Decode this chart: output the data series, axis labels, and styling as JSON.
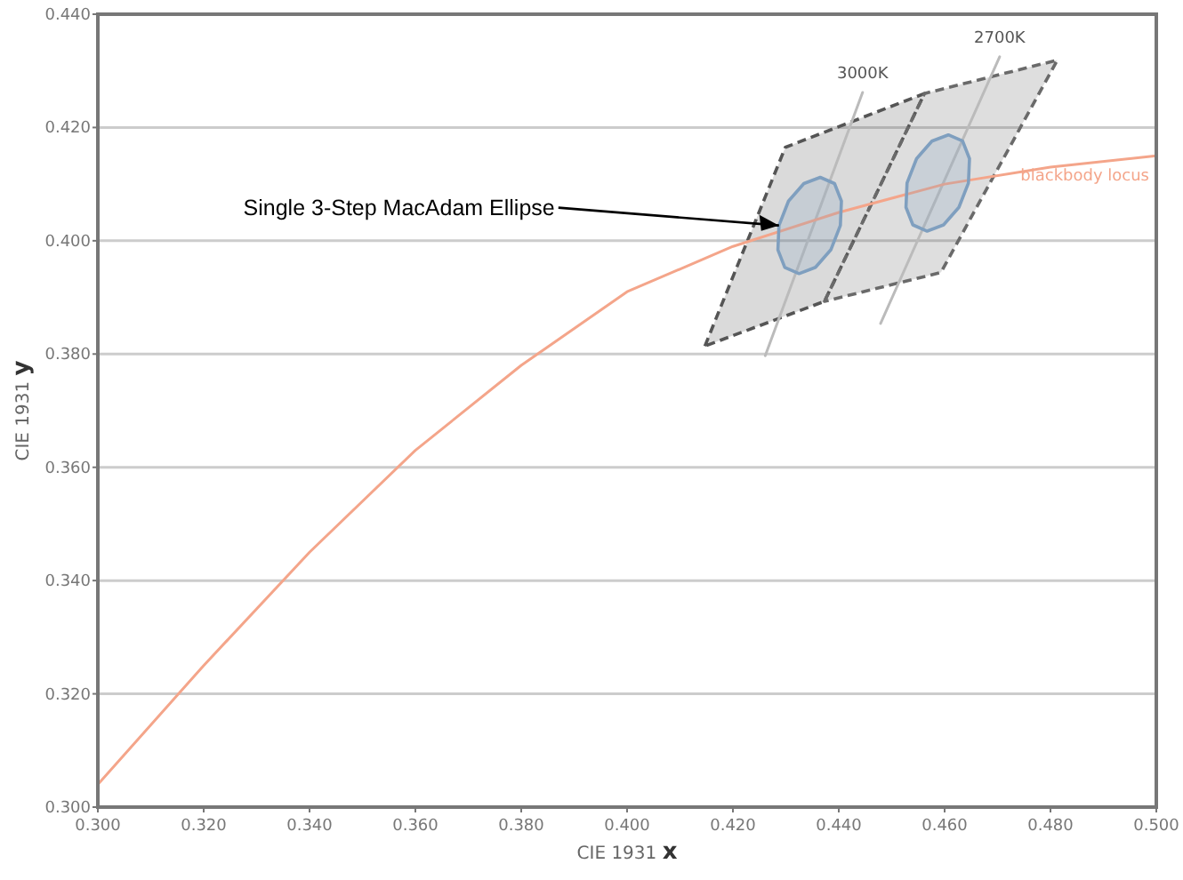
{
  "chart_data": {
    "type": "line",
    "xlabel": "CIE 1931 x",
    "ylabel": "CIE 1931 y",
    "xlim": [
      0.3,
      0.5
    ],
    "ylim": [
      0.3,
      0.44
    ],
    "xticks": [
      {
        "value": 0.3,
        "label": "0.300"
      },
      {
        "value": 0.32,
        "label": "0.320"
      },
      {
        "value": 0.34,
        "label": "0.340"
      },
      {
        "value": 0.36,
        "label": "0.360"
      },
      {
        "value": 0.38,
        "label": "0.380"
      },
      {
        "value": 0.4,
        "label": "0.400"
      },
      {
        "value": 0.42,
        "label": "0.420"
      },
      {
        "value": 0.44,
        "label": "0.440"
      },
      {
        "value": 0.46,
        "label": "0.460"
      },
      {
        "value": 0.48,
        "label": "0.480"
      },
      {
        "value": 0.5,
        "label": "0.500"
      }
    ],
    "yticks": [
      {
        "value": 0.3,
        "label": "0.300"
      },
      {
        "value": 0.32,
        "label": "0.320"
      },
      {
        "value": 0.34,
        "label": "0.340"
      },
      {
        "value": 0.36,
        "label": "0.360"
      },
      {
        "value": 0.38,
        "label": "0.380"
      },
      {
        "value": 0.4,
        "label": "0.400"
      },
      {
        "value": 0.42,
        "label": "0.420"
      },
      {
        "value": 0.44,
        "label": "0.440"
      }
    ],
    "grid": "y",
    "legend": false,
    "marker": "none",
    "series": [
      {
        "type": "area",
        "color": "#555555",
        "line_style": "dashed",
        "x": [
          0.4147,
          0.4299,
          0.4562,
          0.4373,
          0.4147
        ],
        "values": [
          0.3814,
          0.4165,
          0.426,
          0.3893,
          0.3814
        ]
      },
      {
        "type": "area",
        "color": "#6a6a6a",
        "line_style": "dashed",
        "x": [
          0.4373,
          0.4562,
          0.4813,
          0.4593,
          0.4373
        ],
        "values": [
          0.3893,
          0.426,
          0.4319,
          0.3944,
          0.3893
        ]
      },
      {
        "name": "3000K",
        "color": "#bbbbbb",
        "x": [
          0.4261,
          0.4445
        ],
        "values": [
          0.3797,
          0.4262
        ]
      },
      {
        "name": "2700K",
        "color": "#bbbbbb",
        "x": [
          0.4479,
          0.4704
        ],
        "values": [
          0.3854,
          0.4325
        ]
      },
      {
        "name": "blackbody locus",
        "color": "#f4a58a",
        "x": [
          0.3,
          0.32,
          0.34,
          0.36,
          0.38,
          0.4,
          0.42,
          0.44,
          0.46,
          0.48,
          0.5
        ],
        "values": [
          0.304,
          0.325,
          0.345,
          0.363,
          0.378,
          0.391,
          0.399,
          0.405,
          0.41,
          0.413,
          0.415
        ]
      },
      {
        "type": "area",
        "color": "#7f9fbf",
        "x": [
          0.4403,
          0.4405,
          0.4392,
          0.4365,
          0.4334,
          0.4305,
          0.4287,
          0.4285,
          0.4298,
          0.4325,
          0.4356,
          0.4385,
          0.4403
        ],
        "values": [
          0.4027,
          0.407,
          0.4101,
          0.4112,
          0.4101,
          0.407,
          0.4027,
          0.3984,
          0.3953,
          0.3942,
          0.3953,
          0.3984,
          0.4027
        ]
      },
      {
        "type": "area",
        "color": "#7f9fbf",
        "x": [
          0.4645,
          0.4647,
          0.4634,
          0.4607,
          0.4576,
          0.4547,
          0.4529,
          0.4527,
          0.454,
          0.4567,
          0.4598,
          0.4627,
          0.4645
        ],
        "values": [
          0.4102,
          0.4145,
          0.4176,
          0.4187,
          0.4176,
          0.4145,
          0.4102,
          0.4059,
          0.4028,
          0.4017,
          0.4028,
          0.4059,
          0.4102
        ]
      }
    ],
    "annotations": [
      {
        "text": "Single 3-Step MacAdam Ellipse",
        "x": 0.4287,
        "y": 0.4027
      }
    ]
  }
}
